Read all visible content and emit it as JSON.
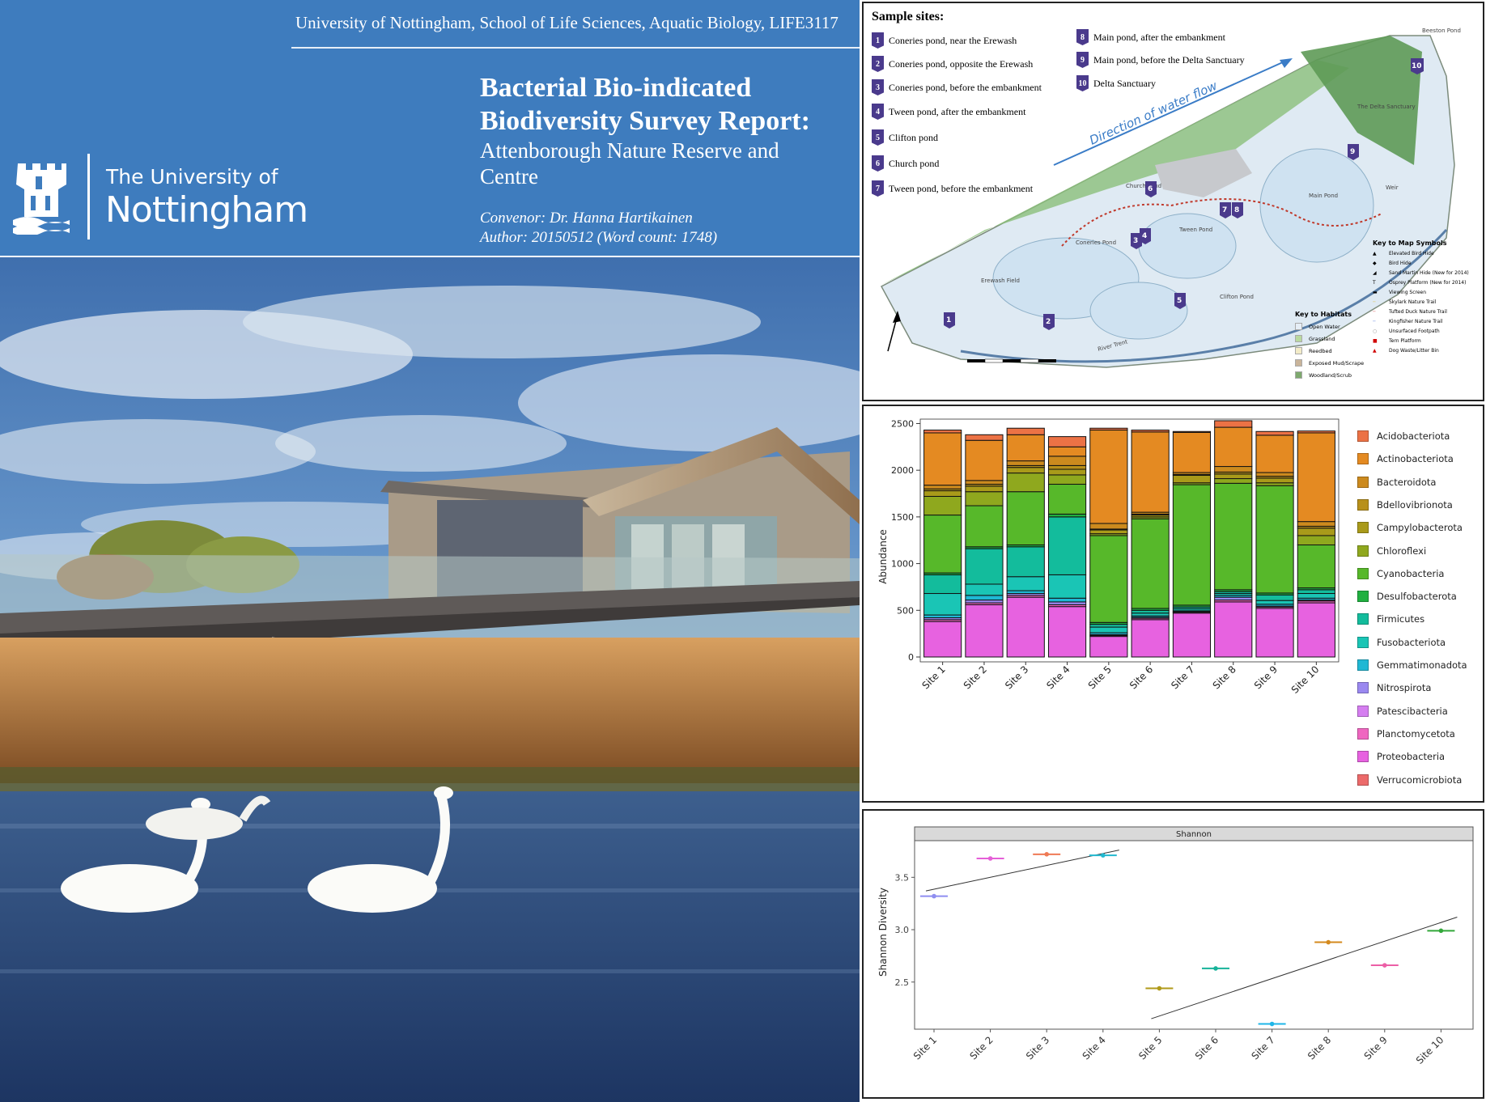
{
  "cover": {
    "course_line": "University of Nottingham, School of Life Sciences, Aquatic Biology, LIFE3117",
    "logo_line1": "The University of",
    "logo_line2": "Nottingham",
    "title_line1": "Bacterial Bio-indicated",
    "title_line2": "Biodiversity Survey Report:",
    "subtitle_line1": "Attenborough Nature Reserve and",
    "subtitle_line2": "Centre",
    "convenor": "Convenor: Dr. Hanna Hartikainen",
    "author": "Author: 20150512 (Word count: 1748)",
    "header_color": "#3e7cbe"
  },
  "map": {
    "sites_title": "Sample sites:",
    "sites_left": [
      {
        "num": "1",
        "name": "Coneries pond, near the Erewash"
      },
      {
        "num": "2",
        "name": "Coneries pond, opposite the Erewash"
      },
      {
        "num": "3",
        "name": "Coneries pond, before the embankment"
      },
      {
        "num": "4",
        "name": "Tween pond, after the embankment"
      },
      {
        "num": "5",
        "name": "Clifton pond"
      },
      {
        "num": "6",
        "name": "Church pond"
      },
      {
        "num": "7",
        "name": "Tween pond, before the embankment"
      }
    ],
    "sites_right": [
      {
        "num": "8",
        "name": "Main pond, after the embankment"
      },
      {
        "num": "9",
        "name": "Main pond, before the Delta Sanctuary"
      },
      {
        "num": "10",
        "name": "Delta Sanctuary"
      }
    ],
    "flow_label": "Direction of water flow",
    "place_labels": {
      "coneries": "Coneries Pond",
      "erewash": "Erewash Field",
      "church": "Church Pond",
      "tween": "Tween Pond",
      "clifton": "Clifton Pond",
      "main": "Main Pond",
      "delta": "The Delta Sanctuary",
      "beeston": "Beeston Pond",
      "trent": "River Trent",
      "weir": "Weir"
    },
    "habitats_title": "Key to Habitats",
    "habitats": [
      "Open Water",
      "Grassland",
      "Reedbed",
      "Exposed Mud/Scrape",
      "Woodland/Scrub"
    ],
    "symbols_title": "Key to Map Symbols",
    "symbols": [
      "Elevated Bird Hide",
      "Bird Hide",
      "Sand Martin Hide (New for 2014)",
      "Osprey Platform (New for 2014)",
      "Viewing Screen",
      "Skylark Nature Trail",
      "Tufted Duck Nature Trail",
      "Kingfisher Nature Trail",
      "Unsurfaced Footpath",
      "Tern Platform",
      "Dog Waste/Litter Bin"
    ]
  },
  "chart_data": [
    {
      "type": "bar",
      "stacked": true,
      "ylabel": "Abundance",
      "xlabel": "",
      "ylim": [
        0,
        2500
      ],
      "yticks": [
        0,
        500,
        1000,
        1500,
        2000,
        2500
      ],
      "categories": [
        "Site 1",
        "Site 2",
        "Site 3",
        "Site 4",
        "Site 5",
        "Site 6",
        "Site 7",
        "Site 8",
        "Site 9",
        "Site 10"
      ],
      "legend_position": "right",
      "series": [
        {
          "name": "Proteobacteria",
          "color": "#e762e0",
          "values": [
            380,
            560,
            640,
            540,
            220,
            400,
            470,
            590,
            520,
            580
          ]
        },
        {
          "name": "Planctomycetota",
          "color": "#ef66c0",
          "values": [
            20,
            20,
            20,
            20,
            10,
            15,
            10,
            20,
            15,
            20
          ]
        },
        {
          "name": "Nitrospirota",
          "color": "#9a88f0",
          "values": [
            20,
            30,
            20,
            30,
            10,
            10,
            5,
            30,
            10,
            10
          ]
        },
        {
          "name": "Gemmatimonadota",
          "color": "#1fb8d4",
          "values": [
            30,
            50,
            30,
            40,
            20,
            15,
            10,
            20,
            20,
            20
          ]
        },
        {
          "name": "Fusobacteriota",
          "color": "#1ac5b5",
          "values": [
            230,
            120,
            150,
            250,
            60,
            30,
            20,
            20,
            40,
            50
          ]
        },
        {
          "name": "Firmicutes",
          "color": "#13bc9c",
          "values": [
            200,
            380,
            320,
            620,
            30,
            30,
            20,
            20,
            60,
            40
          ]
        },
        {
          "name": "Desulfobacterota",
          "color": "#20b040",
          "values": [
            20,
            20,
            20,
            30,
            20,
            20,
            20,
            20,
            20,
            20
          ]
        },
        {
          "name": "Cyanobacteria",
          "color": "#57b82a",
          "values": [
            620,
            440,
            570,
            320,
            930,
            960,
            1290,
            1140,
            1150,
            460
          ]
        },
        {
          "name": "Chloroflexi",
          "color": "#8fa81e",
          "values": [
            200,
            150,
            200,
            100,
            20,
            20,
            20,
            50,
            30,
            100
          ]
        },
        {
          "name": "Campylobacterota",
          "color": "#a99a1a",
          "values": [
            60,
            60,
            60,
            60,
            40,
            20,
            80,
            50,
            50,
            80
          ]
        },
        {
          "name": "Bdellovibrionota",
          "color": "#b8901a",
          "values": [
            20,
            20,
            20,
            40,
            10,
            10,
            10,
            20,
            20,
            20
          ]
        },
        {
          "name": "Bacteroidota",
          "color": "#cc8a1e",
          "values": [
            40,
            40,
            50,
            100,
            60,
            20,
            20,
            60,
            40,
            50
          ]
        },
        {
          "name": "Actinobacteriota",
          "color": "#e48a22",
          "values": [
            560,
            430,
            280,
            100,
            1000,
            860,
            430,
            420,
            400,
            950
          ]
        },
        {
          "name": "Acidobacteriota",
          "color": "#ec7245",
          "values": [
            30,
            60,
            70,
            110,
            20,
            20,
            10,
            70,
            40,
            20
          ]
        },
        {
          "name": "Verrucomicrobiota",
          "color": "#ec6a6a",
          "values": [
            0,
            0,
            0,
            0,
            0,
            0,
            0,
            0,
            0,
            0
          ]
        },
        {
          "name": "Patescibacteria",
          "color": "#d57ef0",
          "values": [
            0,
            0,
            0,
            0,
            0,
            0,
            0,
            0,
            0,
            0
          ]
        }
      ],
      "legend_order": [
        "Acidobacteriota",
        "Actinobacteriota",
        "Bacteroidota",
        "Bdellovibrionota",
        "Campylobacterota",
        "Chloroflexi",
        "Cyanobacteria",
        "Desulfobacterota",
        "Firmicutes",
        "Fusobacteriota",
        "Gemmatimonadota",
        "Nitrospirota",
        "Patescibacteria",
        "Planctomycetota",
        "Proteobacteria",
        "Verrucomicrobiota"
      ],
      "legend_colors": [
        "#ec7245",
        "#e48a22",
        "#cc8a1e",
        "#b8901a",
        "#a99a1a",
        "#8fa81e",
        "#57b82a",
        "#20b040",
        "#13bc9c",
        "#1ac5b5",
        "#1fb8d4",
        "#9a88f0",
        "#d57ef0",
        "#ef66c0",
        "#e762e0",
        "#ec6a6a"
      ]
    },
    {
      "type": "scatter",
      "title": "Shannon",
      "ylabel": "Shannon Diversity",
      "xlabel": "",
      "ylim": [
        2.05,
        3.85
      ],
      "yticks": [
        2.5,
        3.0,
        3.5
      ],
      "categories": [
        "Site 1",
        "Site 2",
        "Site 3",
        "Site 4",
        "Site 5",
        "Site 6",
        "Site 7",
        "Site 8",
        "Site 9",
        "Site 10"
      ],
      "values": [
        3.32,
        3.68,
        3.72,
        3.71,
        2.44,
        2.63,
        2.1,
        2.88,
        2.66,
        2.99
      ],
      "colors": [
        "#8f8ef0",
        "#e55fd7",
        "#ef7a55",
        "#22b8cf",
        "#b09a1a",
        "#17b39a",
        "#1fb6e8",
        "#d48a1e",
        "#ec5fa6",
        "#33a83a"
      ],
      "trendlines": [
        {
          "x": [
            1,
            4
          ],
          "y": [
            3.37,
            3.76
          ]
        },
        {
          "x": [
            5,
            10
          ],
          "y": [
            2.15,
            3.12
          ]
        }
      ]
    }
  ]
}
